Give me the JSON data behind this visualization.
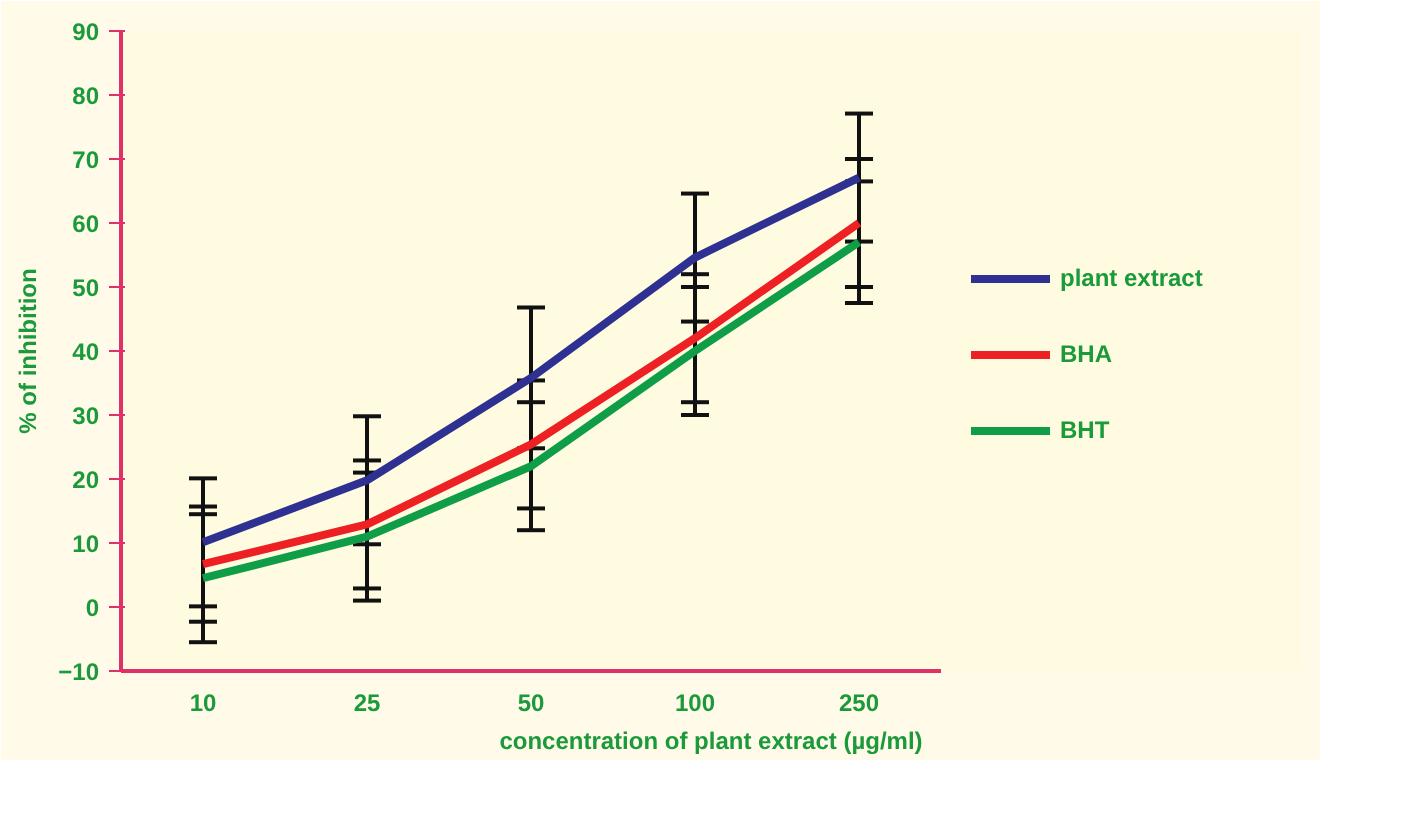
{
  "chart_data": {
    "type": "line",
    "xlabel": "concentration of plant extract (µg/ml)",
    "ylabel": "% of inhibition",
    "categories": [
      "10",
      "25",
      "50",
      "100",
      "250"
    ],
    "ylim": [
      -10,
      90
    ],
    "yticks": [
      -10,
      0,
      10,
      20,
      30,
      40,
      50,
      60,
      70,
      80,
      90
    ],
    "grid": false,
    "legend": "right",
    "marker": "none",
    "line_style": "solid",
    "series": [
      {
        "name": "plant extract",
        "color": "#2e3192",
        "values": [
          10.1,
          19.8,
          35.8,
          54.6,
          67.1
        ],
        "errors": [
          10,
          10,
          11,
          10,
          10
        ]
      },
      {
        "name": "BHA",
        "color": "#ed2024",
        "values": [
          6.7,
          12.9,
          25.4,
          42,
          60
        ],
        "errors": [
          9,
          10,
          10,
          10,
          10
        ]
      },
      {
        "name": "BHT",
        "color": "#0f9d48",
        "values": [
          4.5,
          11,
          22,
          40,
          57
        ],
        "errors": [
          10,
          10,
          10,
          10,
          9.5
        ]
      }
    ]
  }
}
